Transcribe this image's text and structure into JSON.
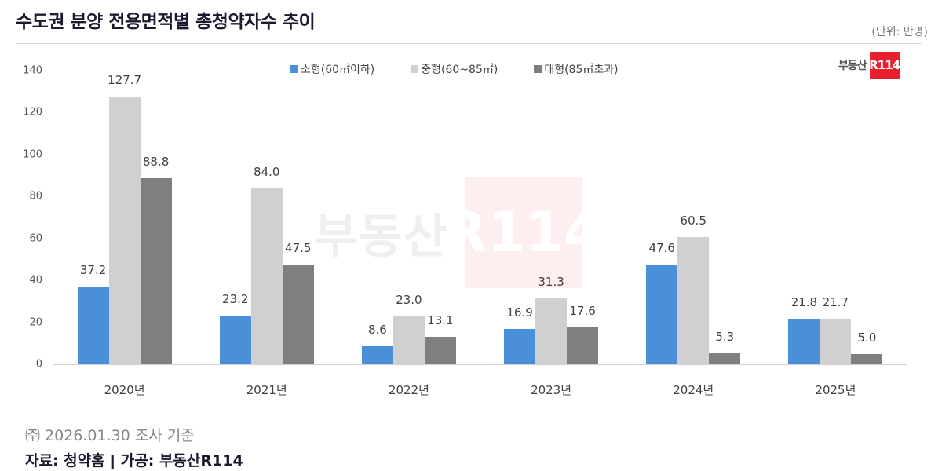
{
  "header": {
    "title": "수도권 분양 전용면적별 총청약자수 추이",
    "unit": "(단위: 만명)"
  },
  "logo": {
    "text": "부동산",
    "box": "R114"
  },
  "watermark": {
    "text": "부동산",
    "box": "R114"
  },
  "colors": {
    "small": "#4a90d9",
    "medium": "#d0d0d0",
    "large": "#7f7f7f",
    "brand": "#e8202e"
  },
  "footer": {
    "note": "㈜ 2026.01.30 조사 기준",
    "source": "자료: 청약홈 | 가공: 부동산R114"
  },
  "chart_data": {
    "type": "bar",
    "title": "수도권 분양 전용면적별 총청약자수 추이",
    "xlabel": "",
    "ylabel": "만명",
    "ylim": [
      0,
      140
    ],
    "yticks": [
      0,
      20,
      40,
      60,
      80,
      100,
      120,
      140
    ],
    "grid": false,
    "legend_position": "top",
    "categories": [
      "2020년",
      "2021년",
      "2022년",
      "2023년",
      "2024년",
      "2025년"
    ],
    "series": [
      {
        "name": "소형(60㎡이하)",
        "color": "#4a90d9",
        "values": [
          37.2,
          23.2,
          8.6,
          16.9,
          47.6,
          21.8
        ],
        "labels": [
          "37.2",
          "23.2",
          "8.6",
          "16.9",
          "47.6",
          "21.8"
        ]
      },
      {
        "name": "중형(60~85㎡)",
        "color": "#d0d0d0",
        "values": [
          127.7,
          84.0,
          23.0,
          31.3,
          60.5,
          21.7
        ],
        "labels": [
          "127.7",
          "84.0",
          "23.0",
          "31.3",
          "60.5",
          "21.7"
        ]
      },
      {
        "name": "대형(85㎡초과)",
        "color": "#7f7f7f",
        "values": [
          88.8,
          47.5,
          13.1,
          17.6,
          5.3,
          5.0
        ],
        "labels": [
          "88.8",
          "47.5",
          "13.1",
          "17.6",
          "5.3",
          "5.0"
        ]
      }
    ]
  }
}
